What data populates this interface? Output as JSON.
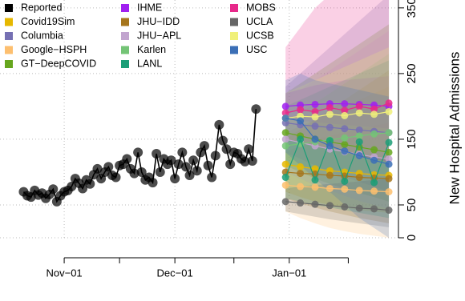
{
  "chart_data": {
    "type": "line",
    "y_label": "New Hospital Admissions",
    "ylim": [
      0,
      362
    ],
    "yticks": [
      0,
      50,
      150,
      250,
      350
    ],
    "xlim": [
      -0.4,
      107.6
    ],
    "xticks": [
      {
        "value": 17,
        "label": "Nov−01"
      },
      {
        "value": 47,
        "label": "Dec−01"
      },
      {
        "value": 78,
        "label": "Jan−01"
      }
    ],
    "xminor": [
      32,
      63,
      94
    ],
    "grid": true,
    "series": [
      {
        "name": "Reported",
        "color": "#000000",
        "x": [
          6,
          7,
          8,
          9,
          10,
          11,
          12,
          13,
          14,
          15,
          16,
          17,
          18,
          19,
          20,
          21,
          22,
          23,
          24,
          25,
          26,
          27,
          28,
          29,
          30,
          31,
          32,
          33,
          34,
          35,
          36,
          37,
          38,
          39,
          40,
          41,
          42,
          43,
          44,
          45,
          46,
          47,
          48,
          49,
          50,
          51,
          52,
          53,
          54,
          55,
          56,
          57,
          58,
          59,
          60,
          61,
          62,
          63,
          64,
          65,
          66,
          67,
          68,
          69
        ],
        "values": [
          70,
          64,
          62,
          72,
          65,
          68,
          60,
          66,
          74,
          55,
          64,
          70,
          72,
          78,
          90,
          83,
          75,
          88,
          82,
          96,
          105,
          90,
          100,
          108,
          95,
          92,
          110,
          112,
          120,
          105,
          98,
          130,
          100,
          88,
          92,
          84,
          128,
          100,
          120,
          112,
          118,
          90,
          112,
          130,
          108,
          95,
          118,
          102,
          130,
          140,
          110,
          92,
          125,
          172,
          148,
          135,
          112,
          130,
          128,
          120,
          116,
          135,
          117,
          196
        ]
      },
      {
        "name": "Covid19Sim",
        "color": "#e6b800",
        "x": [
          77,
          81,
          85,
          89,
          93,
          97,
          101,
          105
        ],
        "values": [
          112,
          108,
          105,
          102,
          100,
          98,
          96,
          95
        ],
        "lower": [
          70,
          62,
          55,
          50,
          46,
          42,
          40,
          38
        ],
        "upper": [
          160,
          170,
          180,
          190,
          200,
          210,
          220,
          230
        ]
      },
      {
        "name": "Columbia",
        "color": "#7570b3",
        "x": [
          77,
          81,
          85,
          89,
          93,
          97,
          101,
          105
        ],
        "values": [
          175,
          172,
          170,
          168,
          166,
          164,
          162,
          160
        ],
        "lower": [
          130,
          120,
          110,
          100,
          92,
          85,
          78,
          70
        ],
        "upper": [
          230,
          250,
          270,
          290,
          310,
          330,
          350,
          370
        ]
      },
      {
        "name": "Google−HSPH",
        "color": "#fdbf6f",
        "x": [
          77,
          81,
          85,
          89,
          93,
          97,
          101,
          105
        ],
        "values": [
          80,
          78,
          77,
          75,
          74,
          72,
          71,
          70
        ],
        "lower": [
          40,
          30,
          22,
          15,
          10,
          6,
          3,
          0
        ],
        "upper": [
          130,
          140,
          150,
          155,
          160,
          165,
          170,
          175
        ]
      },
      {
        "name": "GT−DeepCOVID",
        "color": "#66a61e",
        "x": [
          77,
          81,
          85,
          89,
          93,
          97,
          101,
          105
        ],
        "values": [
          160,
          155,
          150,
          146,
          142,
          138,
          134,
          130
        ],
        "lower": [
          110,
          100,
          90,
          82,
          75,
          68,
          62,
          55
        ],
        "upper": [
          220,
          235,
          250,
          265,
          280,
          295,
          310,
          325
        ]
      },
      {
        "name": "IHME",
        "color": "#a020f0",
        "x": [
          77,
          81,
          85,
          89,
          93,
          97,
          101,
          105
        ],
        "values": [
          200,
          202,
          203,
          204,
          204,
          203,
          202,
          200
        ],
        "lower": [
          180,
          178,
          176,
          174,
          172,
          170,
          168,
          166
        ],
        "upper": [
          220,
          226,
          232,
          236,
          240,
          242,
          244,
          246
        ]
      },
      {
        "name": "JHU−IDD",
        "color": "#a6761d",
        "x": [
          77,
          81,
          85,
          89,
          93,
          97,
          101,
          105
        ],
        "values": [
          100,
          98,
          97,
          95,
          94,
          92,
          91,
          90
        ],
        "lower": [
          60,
          52,
          46,
          40,
          35,
          30,
          26,
          22
        ],
        "upper": [
          150,
          165,
          180,
          195,
          210,
          225,
          240,
          255
        ]
      },
      {
        "name": "JHU−APL",
        "color": "#c2a5cf",
        "x": [
          77,
          81,
          85,
          89,
          93,
          97,
          101,
          105
        ],
        "values": [
          150,
          145,
          140,
          135,
          131,
          127,
          123,
          120
        ],
        "lower": [
          100,
          90,
          80,
          72,
          64,
          56,
          50,
          44
        ],
        "upper": [
          210,
          225,
          240,
          255,
          270,
          285,
          300,
          315
        ]
      },
      {
        "name": "Karlen",
        "color": "#74c476",
        "x": [
          77,
          81,
          85,
          89,
          93,
          97,
          101,
          105
        ],
        "values": [
          140,
          143,
          146,
          149,
          152,
          155,
          158,
          160
        ],
        "lower": [
          110,
          108,
          106,
          104,
          102,
          100,
          98,
          96
        ],
        "upper": [
          175,
          190,
          205,
          220,
          235,
          250,
          265,
          280
        ]
      },
      {
        "name": "LANL",
        "color": "#1b9e77",
        "x": [
          77,
          81,
          85,
          89,
          93,
          97,
          101,
          105
        ],
        "values": [
          92,
          150,
          88,
          148,
          86,
          146,
          84,
          145
        ],
        "lower": [
          60,
          55,
          50,
          46,
          42,
          38,
          34,
          30
        ],
        "upper": [
          200,
          210,
          220,
          230,
          240,
          250,
          260,
          270
        ]
      },
      {
        "name": "MOBS",
        "color": "#e7298a",
        "x": [
          77,
          81,
          85,
          89,
          93,
          97,
          101,
          105
        ],
        "values": [
          190,
          195,
          192,
          198,
          194,
          200,
          196,
          205
        ],
        "lower": [
          150,
          145,
          140,
          135,
          130,
          125,
          120,
          115
        ],
        "upper": [
          290,
          320,
          350,
          370,
          380,
          390,
          400,
          410
        ]
      },
      {
        "name": "UCLA",
        "color": "#666666",
        "x": [
          77,
          81,
          85,
          89,
          93,
          97,
          101,
          105
        ],
        "values": [
          55,
          53,
          51,
          49,
          47,
          45,
          44,
          42
        ],
        "lower": [
          40,
          36,
          32,
          28,
          25,
          22,
          19,
          16
        ],
        "upper": [
          75,
          78,
          80,
          82,
          84,
          86,
          88,
          90
        ]
      },
      {
        "name": "UCSB",
        "color": "#f0f07a",
        "x": [
          77,
          81,
          85,
          89,
          93,
          97,
          101,
          105
        ],
        "values": [
          182,
          185,
          184,
          188,
          186,
          190,
          188,
          192
        ],
        "lower": [
          150,
          145,
          140,
          135,
          130,
          126,
          122,
          118
        ],
        "upper": [
          220,
          230,
          240,
          250,
          260,
          270,
          280,
          290
        ]
      },
      {
        "name": "USC",
        "color": "#3b6fb6",
        "x": [
          77,
          81,
          85,
          89,
          93,
          97,
          101,
          105
        ],
        "values": [
          182,
          178,
          150,
          140,
          132,
          125,
          118,
          112
        ],
        "lower": [
          130,
          110,
          90,
          70,
          50,
          30,
          15,
          0
        ],
        "upper": [
          240,
          250,
          240,
          235,
          230,
          225,
          220,
          215
        ]
      }
    ]
  }
}
